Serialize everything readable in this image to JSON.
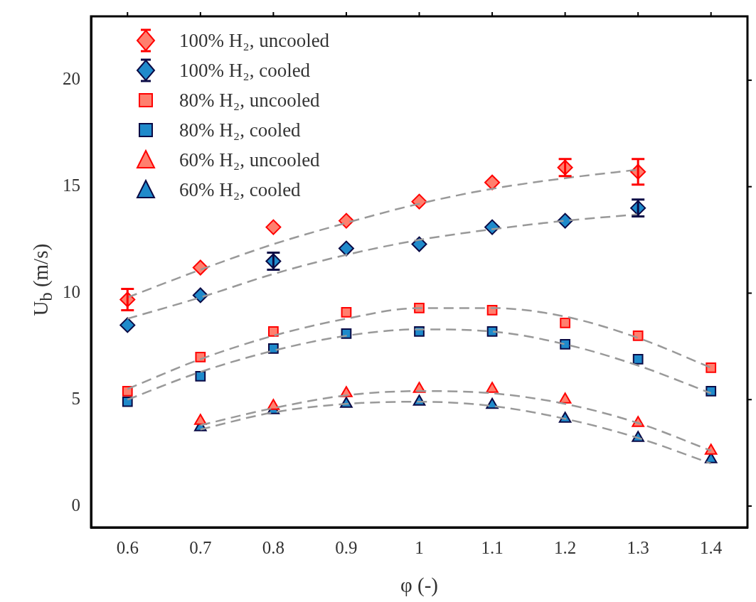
{
  "chart_data": {
    "type": "scatter",
    "xlabel": "φ (-)",
    "ylabel": "U$_{b}$ (m/s)",
    "xlim": [
      0.55,
      1.45
    ],
    "xticks": [
      0.6,
      0.7,
      0.8,
      0.9,
      1,
      1.1,
      1.2,
      1.3,
      1.4
    ],
    "ylim": [
      -1,
      23
    ],
    "yticks": [
      0,
      5,
      10,
      15,
      20
    ],
    "grid": false,
    "legend": "top left",
    "series": [
      {
        "name": "100% H₂, uncooled",
        "color": "#ff7f6e",
        "marker": "diamond",
        "x": [
          0.6,
          0.7,
          0.8,
          0.9,
          1,
          1.1,
          1.2,
          1.3
        ],
        "values": [
          9.7,
          11.2,
          13.1,
          13.4,
          14.3,
          15.2,
          15.9,
          15.7
        ],
        "errors": [
          0.5,
          null,
          null,
          null,
          null,
          null,
          0.4,
          0.6
        ]
      },
      {
        "name": "100% H₂, cooled",
        "color": "#1f8acb",
        "marker": "diamond",
        "x": [
          0.6,
          0.7,
          0.8,
          0.9,
          1,
          1.1,
          1.2,
          1.3
        ],
        "values": [
          8.5,
          9.9,
          11.5,
          12.1,
          12.3,
          13.1,
          13.4,
          14.0
        ],
        "errors": [
          null,
          null,
          0.4,
          null,
          null,
          null,
          null,
          0.4
        ]
      },
      {
        "name": "80% H₂, uncooled",
        "color": "#ff7f6e",
        "marker": "square",
        "x": [
          0.6,
          0.7,
          0.8,
          0.9,
          1,
          1.1,
          1.2,
          1.3,
          1.4
        ],
        "values": [
          5.4,
          7.0,
          8.2,
          9.1,
          9.3,
          9.2,
          8.6,
          8.0,
          6.5
        ]
      },
      {
        "name": "80% H₂, cooled",
        "color": "#1f8acb",
        "marker": "square",
        "x": [
          0.6,
          0.7,
          0.8,
          0.9,
          1,
          1.1,
          1.2,
          1.3,
          1.4
        ],
        "values": [
          4.9,
          6.1,
          7.4,
          8.1,
          8.2,
          8.2,
          7.6,
          6.9,
          5.4
        ]
      },
      {
        "name": "60% H₂, uncooled",
        "color": "#ff7f6e",
        "marker": "triangle",
        "x": [
          0.7,
          0.8,
          0.9,
          1,
          1.1,
          1.2,
          1.3,
          1.4
        ],
        "values": [
          4.0,
          4.7,
          5.3,
          5.5,
          5.5,
          5.0,
          3.9,
          2.6
        ]
      },
      {
        "name": "60% H₂, cooled",
        "color": "#1f8acb",
        "marker": "triangle",
        "x": [
          0.7,
          0.8,
          0.9,
          1,
          1.1,
          1.2,
          1.3,
          1.4
        ],
        "values": [
          3.7,
          4.5,
          4.8,
          4.9,
          4.75,
          4.1,
          3.2,
          2.2
        ]
      },
      {
        "type": "line",
        "color": "#999999",
        "line_style": "dashed",
        "marker": "none",
        "x": [
          0.6,
          0.7,
          0.8,
          0.9,
          1,
          1.1,
          1.2,
          1.3
        ],
        "values": [
          9.8,
          11.1,
          12.3,
          13.3,
          14.2,
          14.9,
          15.4,
          15.8
        ]
      },
      {
        "type": "line",
        "color": "#999999",
        "line_style": "dashed",
        "marker": "none",
        "x": [
          0.6,
          0.7,
          0.8,
          0.9,
          1,
          1.1,
          1.2,
          1.3
        ],
        "values": [
          8.8,
          9.8,
          10.9,
          11.8,
          12.5,
          13.0,
          13.4,
          13.7
        ]
      },
      {
        "type": "line",
        "color": "#999999",
        "line_style": "dashed",
        "marker": "none",
        "x": [
          0.6,
          0.7,
          0.8,
          0.9,
          1,
          1.1,
          1.2,
          1.3,
          1.4
        ],
        "values": [
          5.5,
          6.9,
          8.0,
          8.8,
          9.3,
          9.3,
          8.9,
          7.9,
          6.5
        ]
      },
      {
        "type": "line",
        "color": "#999999",
        "line_style": "dashed",
        "marker": "none",
        "x": [
          0.6,
          0.7,
          0.8,
          0.9,
          1,
          1.1,
          1.2,
          1.3,
          1.4
        ],
        "values": [
          5.0,
          6.3,
          7.3,
          8.0,
          8.3,
          8.2,
          7.6,
          6.6,
          5.3
        ]
      },
      {
        "type": "line",
        "color": "#999999",
        "line_style": "dashed",
        "marker": "none",
        "x": [
          0.7,
          0.8,
          0.9,
          1,
          1.1,
          1.2,
          1.3,
          1.4
        ],
        "values": [
          3.8,
          4.6,
          5.2,
          5.4,
          5.3,
          4.8,
          3.9,
          2.6
        ]
      },
      {
        "type": "line",
        "color": "#999999",
        "line_style": "dashed",
        "marker": "none",
        "x": [
          0.7,
          0.8,
          0.9,
          1,
          1.1,
          1.2,
          1.3,
          1.4
        ],
        "values": [
          3.6,
          4.4,
          4.8,
          4.9,
          4.7,
          4.1,
          3.2,
          2.0
        ]
      }
    ]
  }
}
